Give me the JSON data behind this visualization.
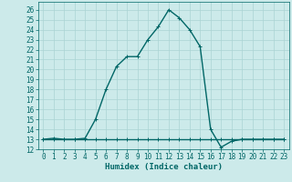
{
  "title": "",
  "xlabel": "Humidex (Indice chaleur)",
  "bg_color": "#cceaea",
  "grid_color": "#aad4d4",
  "line_color": "#006666",
  "xlim": [
    -0.5,
    23.5
  ],
  "ylim": [
    12,
    26.8
  ],
  "yticks": [
    12,
    13,
    14,
    15,
    16,
    17,
    18,
    19,
    20,
    21,
    22,
    23,
    24,
    25,
    26
  ],
  "xticks": [
    0,
    1,
    2,
    3,
    4,
    5,
    6,
    7,
    8,
    9,
    10,
    11,
    12,
    13,
    14,
    15,
    16,
    17,
    18,
    19,
    20,
    21,
    22,
    23
  ],
  "curve1_x": [
    0,
    1,
    2,
    3,
    4,
    5,
    6,
    7,
    8,
    9,
    10,
    11,
    12,
    13,
    14,
    15,
    16,
    17,
    18,
    19,
    20,
    21,
    22,
    23
  ],
  "curve1_y": [
    13,
    13.1,
    13,
    13,
    13.1,
    15,
    18,
    20.3,
    21.3,
    21.3,
    23,
    24.3,
    26,
    25.2,
    24,
    22.3,
    14,
    12.2,
    12.8,
    13,
    13,
    13,
    13,
    13
  ],
  "curve2_x": [
    0,
    1,
    2,
    3,
    4,
    5,
    6,
    7,
    8,
    9,
    10,
    11,
    12,
    13,
    14,
    15,
    16,
    17,
    18,
    19,
    20,
    21,
    22,
    23
  ],
  "curve2_y": [
    13,
    13,
    13,
    13,
    13,
    13,
    13,
    13,
    13,
    13,
    13,
    13,
    13,
    13,
    13,
    13,
    13,
    13,
    13,
    13,
    13,
    13,
    13,
    13
  ],
  "marker": "+",
  "markersize": 3.5,
  "linewidth": 1.0,
  "tick_fontsize": 5.5,
  "xlabel_fontsize": 6.5
}
